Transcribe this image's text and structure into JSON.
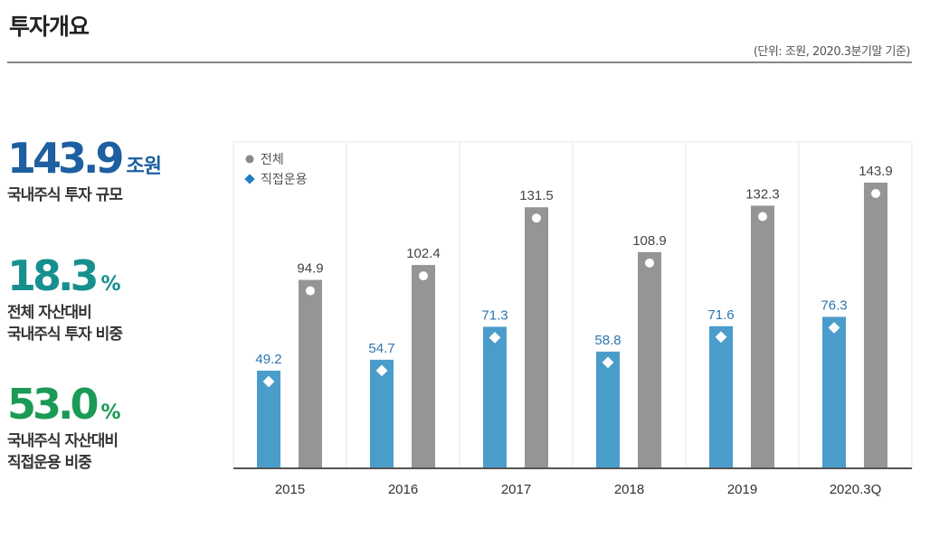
{
  "page": {
    "title": "투자개요",
    "unit_note": "(단위: 조원, 2020.3분기말 기준)"
  },
  "stats": [
    {
      "number": "143.9",
      "unit": "조원",
      "label_lines": [
        "국내주식 투자 규모"
      ],
      "color": "#1d5fa0"
    },
    {
      "number": "18.3",
      "unit": "%",
      "label_lines": [
        "전체 자산대비",
        "국내주식 투자 비중"
      ],
      "color": "#16908f"
    },
    {
      "number": "53.0",
      "unit": "%",
      "label_lines": [
        "국내주식 자산대비",
        "직접운용 비중"
      ],
      "color": "#1a9a55"
    }
  ],
  "colors": {
    "direct": "#4a9dcb",
    "total": "#959595",
    "direct_label": "#2e75b0",
    "total_label": "#444444",
    "grid": "#e6e6e6",
    "axis": "#555555",
    "legend_total_marker": "#8a8a8a",
    "legend_direct_marker": "#1f7fc0"
  },
  "chart_data": {
    "type": "bar",
    "categories": [
      "2015",
      "2016",
      "2017",
      "2018",
      "2019",
      "2020.3Q"
    ],
    "series": [
      {
        "name": "직접운용",
        "values": [
          49.2,
          54.7,
          71.3,
          58.8,
          71.6,
          76.3
        ]
      },
      {
        "name": "전체",
        "values": [
          94.9,
          102.4,
          131.5,
          108.9,
          132.3,
          143.9
        ]
      }
    ],
    "legend": [
      "전체",
      "직접운용"
    ],
    "legend_position": "top-left",
    "ylim": [
      0,
      160
    ],
    "title": "",
    "xlabel": "",
    "ylabel": ""
  }
}
